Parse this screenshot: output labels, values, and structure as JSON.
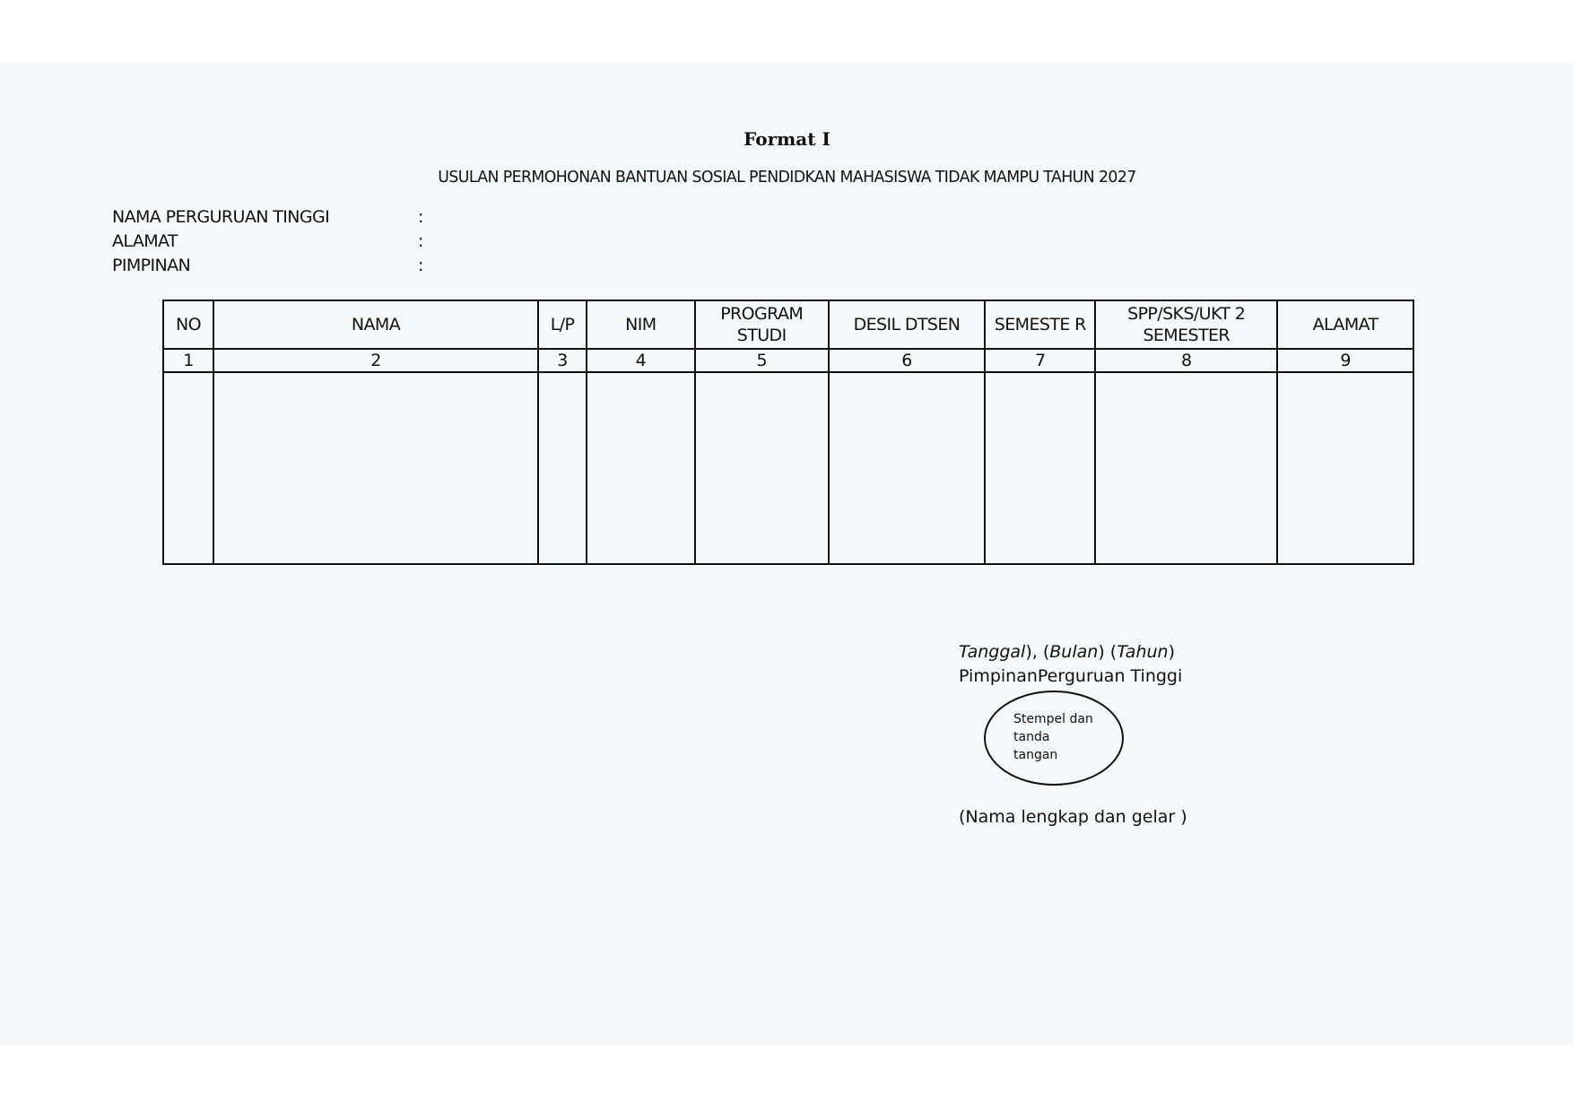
{
  "document": {
    "title": "Format I",
    "subtitle": "USULAN PERMOHONAN BANTUAN SOSIAL PENDIDKAN MAHASISWA TIDAK MAMPU TAHUN 2027",
    "fields": [
      {
        "label": "NAMA PERGURUAN TINGGI",
        "separator": ":"
      },
      {
        "label": "ALAMAT",
        "separator": ":"
      },
      {
        "label": "PIMPINAN",
        "separator": ":"
      }
    ],
    "table": {
      "headers": [
        "NO",
        "NAMA",
        "L/P",
        "NIM",
        "PROGRAM STUDI",
        "DESIL DTSEN",
        "SEMESTE R",
        "SPP/SKS/UKT 2 SEMESTER",
        "ALAMAT"
      ],
      "column_numbers": [
        "1",
        "2",
        "3",
        "4",
        "5",
        "6",
        "7",
        "8",
        "9"
      ]
    },
    "signature": {
      "date_parts": [
        "Tanggal",
        ")",
        ", (",
        "Bulan",
        ") (",
        "Tahun",
        ")"
      ],
      "position": "PimpinanPerguruan Tinggi",
      "stamp_lines": [
        "Stempel dan",
        "tanda",
        "tangan"
      ],
      "name_line": "(Nama lengkap dan gelar )"
    }
  }
}
